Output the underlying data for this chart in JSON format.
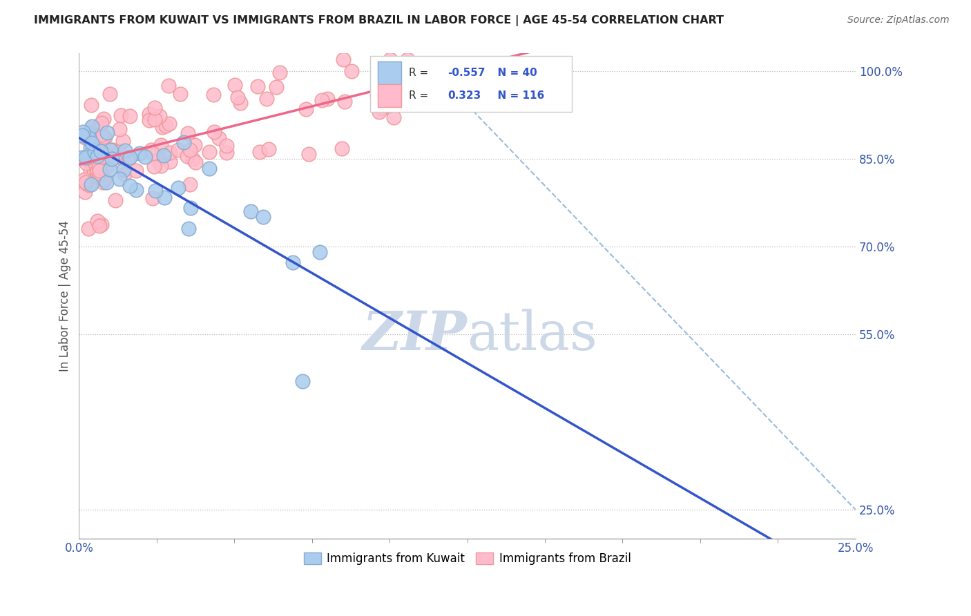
{
  "title": "IMMIGRANTS FROM KUWAIT VS IMMIGRANTS FROM BRAZIL IN LABOR FORCE | AGE 45-54 CORRELATION CHART",
  "source": "Source: ZipAtlas.com",
  "ylabel_label": "In Labor Force | Age 45-54",
  "right_ytick_labels": [
    "100.0%",
    "85.0%",
    "70.0%",
    "55.0%",
    "25.0%"
  ],
  "right_ytick_values": [
    1.0,
    0.85,
    0.7,
    0.55,
    0.25
  ],
  "legend_kuwait": "Immigrants from Kuwait",
  "legend_brazil": "Immigrants from Brazil",
  "kuwait_R": "-0.557",
  "kuwait_N": "40",
  "brazil_R": "0.323",
  "brazil_N": "116",
  "kuwait_color": "#aaccee",
  "brazil_color": "#ffbbcc",
  "kuwait_edge": "#88aacc",
  "brazil_edge": "#ee9999",
  "blue_line_color": "#3355cc",
  "pink_line_color": "#ee6688",
  "dashed_line_color": "#99bbdd",
  "watermark_color": "#ccd8e8",
  "background_color": "#ffffff",
  "xlim": [
    0.0,
    0.25
  ],
  "ylim": [
    0.2,
    1.03
  ]
}
